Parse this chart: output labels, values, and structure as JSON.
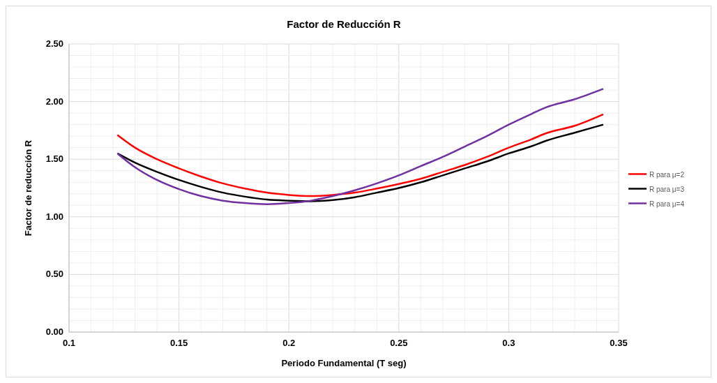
{
  "chart_data": {
    "type": "line",
    "title": "Factor de Reducción R",
    "xlabel": "Periodo Fundamental (T seg)",
    "ylabel": "Factor de reducción R",
    "xlim": [
      0.1,
      0.35
    ],
    "ylim": [
      0,
      2.5
    ],
    "xticks": [
      0.1,
      {
        "value": 0.11,
        "label": null
      },
      {
        "value": 0.12,
        "label": null
      },
      {
        "value": 0.13,
        "label": null
      },
      {
        "value": 0.14,
        "label": null
      },
      0.15,
      {
        "value": 0.16,
        "label": null
      },
      {
        "value": 0.17,
        "label": null
      },
      {
        "value": 0.18,
        "label": null
      },
      {
        "value": 0.19,
        "label": null
      },
      0.2,
      {
        "value": 0.21,
        "label": null
      },
      {
        "value": 0.22,
        "label": null
      },
      {
        "value": 0.23,
        "label": null
      },
      {
        "value": 0.24,
        "label": null
      },
      0.25,
      {
        "value": 0.26,
        "label": null
      },
      {
        "value": 0.27,
        "label": null
      },
      {
        "value": 0.28,
        "label": null
      },
      {
        "value": 0.29,
        "label": null
      },
      0.3,
      {
        "value": 0.31,
        "label": null
      },
      {
        "value": 0.32,
        "label": null
      },
      {
        "value": 0.33,
        "label": null
      },
      {
        "value": 0.34,
        "label": null
      },
      0.35
    ],
    "yticks": [
      {
        "value": 0,
        "label": "0.00"
      },
      {
        "value": 0.1,
        "label": null
      },
      {
        "value": 0.2,
        "label": null
      },
      {
        "value": 0.3,
        "label": null
      },
      {
        "value": 0.4,
        "label": null
      },
      {
        "value": 0.5,
        "label": "0.50"
      },
      {
        "value": 0.6,
        "label": null
      },
      {
        "value": 0.7,
        "label": null
      },
      {
        "value": 0.8,
        "label": null
      },
      {
        "value": 0.9,
        "label": null
      },
      {
        "value": 1,
        "label": "1.00"
      },
      {
        "value": 1.1,
        "label": null
      },
      {
        "value": 1.2,
        "label": null
      },
      {
        "value": 1.3,
        "label": null
      },
      {
        "value": 1.4,
        "label": null
      },
      {
        "value": 1.5,
        "label": "1.50"
      },
      {
        "value": 1.6,
        "label": null
      },
      {
        "value": 1.7,
        "label": null
      },
      {
        "value": 1.8,
        "label": null
      },
      {
        "value": 1.9,
        "label": null
      },
      {
        "value": 2,
        "label": "2.00"
      },
      {
        "value": 2.1,
        "label": null
      },
      {
        "value": 2.2,
        "label": null
      },
      {
        "value": 2.3,
        "label": null
      },
      {
        "value": 2.4,
        "label": null
      },
      {
        "value": 2.5,
        "label": "2.50"
      }
    ],
    "grid": true,
    "legend": "right",
    "marker": "none",
    "line_style": "solid",
    "x": [
      0.122,
      0.13,
      0.14,
      0.15,
      0.16,
      0.17,
      0.18,
      0.19,
      0.2,
      0.21,
      0.22,
      0.23,
      0.24,
      0.25,
      0.26,
      0.27,
      0.28,
      0.29,
      0.3,
      0.31,
      0.317,
      0.33,
      0.343
    ],
    "series": [
      {
        "name": "R para μ=2",
        "color": "#ff0000",
        "values": [
          1.71,
          1.6,
          1.5,
          1.42,
          1.35,
          1.29,
          1.245,
          1.21,
          1.19,
          1.18,
          1.19,
          1.21,
          1.245,
          1.285,
          1.33,
          1.39,
          1.45,
          1.52,
          1.6,
          1.67,
          1.725,
          1.79,
          1.89
        ]
      },
      {
        "name": "R para μ=3",
        "color": "#000000",
        "values": [
          1.55,
          1.47,
          1.39,
          1.32,
          1.26,
          1.21,
          1.175,
          1.15,
          1.14,
          1.135,
          1.145,
          1.17,
          1.21,
          1.25,
          1.3,
          1.36,
          1.42,
          1.48,
          1.55,
          1.61,
          1.66,
          1.73,
          1.8
        ]
      },
      {
        "name": "R para μ=4",
        "color": "#7030a0",
        "values": [
          1.55,
          1.43,
          1.32,
          1.24,
          1.18,
          1.14,
          1.12,
          1.11,
          1.12,
          1.14,
          1.18,
          1.23,
          1.29,
          1.36,
          1.44,
          1.52,
          1.61,
          1.7,
          1.8,
          1.89,
          1.95,
          2.02,
          2.11
        ]
      }
    ]
  }
}
